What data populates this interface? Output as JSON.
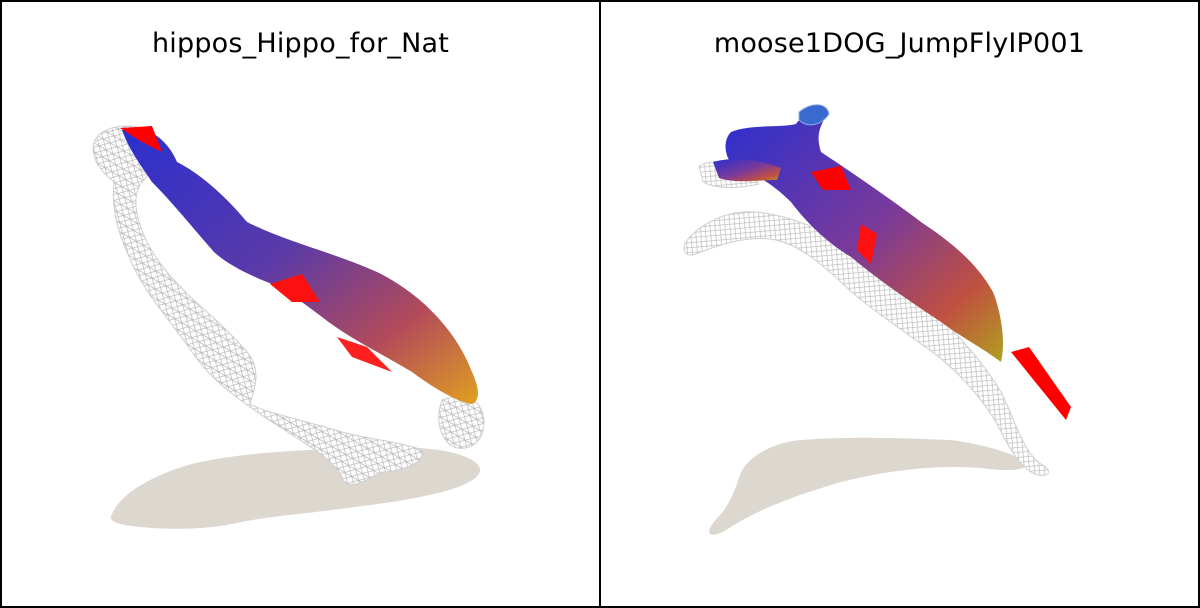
{
  "panels": [
    {
      "title": "hippos_Hippo_for_Nat",
      "subject": "hippo-mesh"
    },
    {
      "title": "moose1DOG_JumpFlyIP001",
      "subject": "dog-mesh"
    }
  ],
  "colors": {
    "shadow": "#dcd8d0",
    "wireframe": "#bfbfbf",
    "highlight": "#ff0000",
    "gradient_start": "#2a2fd0",
    "gradient_mid": "#9b3a7a",
    "gradient_end": "#e0a020"
  }
}
